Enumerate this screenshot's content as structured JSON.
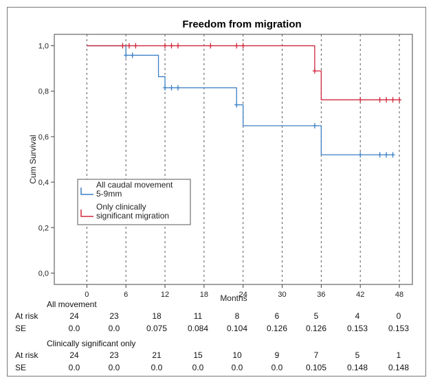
{
  "chart_data": {
    "type": "line",
    "title": "Freedom from migration",
    "xlabel": "Months",
    "ylabel": "Cum Survival",
    "xlim": [
      -5,
      50
    ],
    "ylim": [
      -0.05,
      1.05
    ],
    "xticks": [
      0,
      6,
      12,
      18,
      24,
      30,
      36,
      42,
      48
    ],
    "xtick_labels": [
      "0",
      "6",
      "12",
      "18",
      "24",
      "30",
      "36",
      "42",
      "48"
    ],
    "yticks": [
      0,
      0.2,
      0.4,
      0.6,
      0.8,
      1.0
    ],
    "ytick_labels": [
      "0,0",
      "0,2",
      "0,4",
      "0,6",
      "0,8",
      "1,0"
    ],
    "vertical_dashed_gridlines": true,
    "legend_position": "left-center",
    "series": [
      {
        "name": "All caudal movement 5-9mm",
        "color": "#3a7fc4",
        "steps": [
          [
            0,
            1.0
          ],
          [
            6,
            0.958
          ],
          [
            11,
            0.864
          ],
          [
            12,
            0.815
          ],
          [
            23,
            0.74
          ],
          [
            24,
            0.648
          ],
          [
            36,
            0.52
          ],
          [
            47,
            0.52
          ]
        ],
        "censored": [
          [
            6,
            0.958
          ],
          [
            7,
            0.958
          ],
          [
            12,
            0.815
          ],
          [
            13,
            0.815
          ],
          [
            14,
            0.815
          ],
          [
            23,
            0.74
          ],
          [
            35,
            0.648
          ],
          [
            42,
            0.52
          ],
          [
            45,
            0.52
          ],
          [
            46,
            0.52
          ],
          [
            47,
            0.52
          ]
        ]
      },
      {
        "name": "Only clinically significant migration",
        "color": "#d0263b",
        "steps": [
          [
            0,
            1.0
          ],
          [
            35,
            0.889
          ],
          [
            36,
            0.762
          ],
          [
            48,
            0.762
          ]
        ],
        "censored": [
          [
            5.5,
            1.0
          ],
          [
            6.5,
            1.0
          ],
          [
            7.5,
            1.0
          ],
          [
            12,
            1.0
          ],
          [
            13,
            1.0
          ],
          [
            14,
            1.0
          ],
          [
            19,
            1.0
          ],
          [
            23,
            1.0
          ],
          [
            24,
            1.0
          ],
          [
            35,
            0.889
          ],
          [
            42,
            0.762
          ],
          [
            45,
            0.762
          ],
          [
            46,
            0.762
          ],
          [
            47,
            0.762
          ],
          [
            48,
            0.762
          ]
        ]
      }
    ],
    "legend_lines": [
      [
        "All caudal movement",
        "5-9mm"
      ],
      [
        "Only clinically",
        "significant migration"
      ]
    ]
  },
  "risk_table": {
    "groups": [
      {
        "heading": "All movement",
        "rows": [
          {
            "label": "At risk",
            "values": [
              "24",
              "23",
              "18",
              "11",
              "8",
              "6",
              "5",
              "4",
              "0"
            ]
          },
          {
            "label": "SE",
            "values": [
              "0.0",
              "0.0",
              "0.075",
              "0.084",
              "0.104",
              "0.126",
              "0.126",
              "0.153",
              "0.153"
            ]
          }
        ]
      },
      {
        "heading": "Clinically significant only",
        "rows": [
          {
            "label": "At risk",
            "values": [
              "24",
              "23",
              "21",
              "15",
              "10",
              "9",
              "7",
              "5",
              "1"
            ]
          },
          {
            "label": "SE",
            "values": [
              "0.0",
              "0.0",
              "0.0",
              "0.0",
              "0.0",
              "0.0",
              "0.105",
              "0.148",
              "0.148"
            ]
          }
        ]
      }
    ]
  }
}
